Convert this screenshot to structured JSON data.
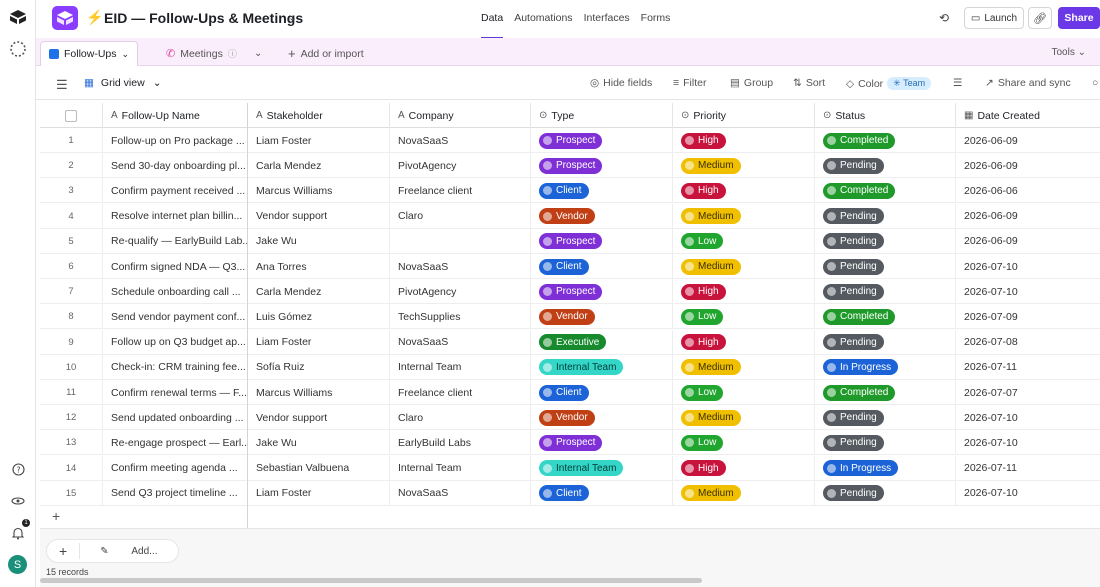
{
  "header": {
    "base_title": "EID — Follow-Ups & Meetings",
    "nav": [
      "Data",
      "Automations",
      "Interfaces",
      "Forms"
    ],
    "launch": "Launch",
    "share": "Share"
  },
  "tabs": {
    "items": [
      {
        "label": "Follow-Ups",
        "color": "#1d72e8"
      },
      {
        "label": "Meetings",
        "color": "#d84a9b"
      }
    ],
    "add_import": "Add or import",
    "tools": "Tools"
  },
  "viewbar": {
    "view_name": "Grid view",
    "hide_fields": "Hide fields",
    "filter": "Filter",
    "group": "Group",
    "sort": "Sort",
    "color": "Color",
    "team": "Team",
    "share_sync": "Share and sync"
  },
  "columns": [
    "Follow-Up Name",
    "Stakeholder",
    "Company",
    "Type",
    "Priority",
    "Status",
    "Date Created"
  ],
  "colors": {
    "Prospect": "#7e2fd6",
    "Client": "#1b63d6",
    "Vendor": "#c13f14",
    "Executive": "#168a2c",
    "Internal Team": "#34d6c8",
    "High": "#c8133d",
    "Medium": "#f0c000",
    "Low": "#20a62e",
    "Completed": "#1f9a2a",
    "Pending": "#555a60",
    "In Progress": "#1b63d6"
  },
  "rows": [
    {
      "n": "1",
      "name": "Follow-up on Pro package ...",
      "stakeholder": "Liam Foster",
      "company": "NovaSaaS",
      "type": "Prospect",
      "priority": "High",
      "status": "Completed",
      "date": "2026-06-09"
    },
    {
      "n": "2",
      "name": "Send 30-day onboarding pl...",
      "stakeholder": "Carla Mendez",
      "company": "PivotAgency",
      "type": "Prospect",
      "priority": "Medium",
      "status": "Pending",
      "date": "2026-06-09"
    },
    {
      "n": "3",
      "name": "Confirm payment received ...",
      "stakeholder": "Marcus Williams",
      "company": "Freelance client",
      "type": "Client",
      "priority": "High",
      "status": "Completed",
      "date": "2026-06-06"
    },
    {
      "n": "4",
      "name": "Resolve internet plan billin...",
      "stakeholder": "Vendor support",
      "company": "Claro",
      "type": "Vendor",
      "priority": "Medium",
      "status": "Pending",
      "date": "2026-06-09"
    },
    {
      "n": "5",
      "name": "Re-qualify — EarlyBuild Lab...",
      "stakeholder": "Jake Wu",
      "company": "",
      "type": "Prospect",
      "priority": "Low",
      "status": "Pending",
      "date": "2026-06-09"
    },
    {
      "n": "6",
      "name": "Confirm signed NDA — Q3...",
      "stakeholder": "Ana Torres",
      "company": "NovaSaaS",
      "type": "Client",
      "priority": "Medium",
      "status": "Pending",
      "date": "2026-07-10"
    },
    {
      "n": "7",
      "name": "Schedule onboarding call ...",
      "stakeholder": "Carla Mendez",
      "company": "PivotAgency",
      "type": "Prospect",
      "priority": "High",
      "status": "Pending",
      "date": "2026-07-10"
    },
    {
      "n": "8",
      "name": "Send vendor payment conf...",
      "stakeholder": "Luis Gómez",
      "company": "TechSupplies",
      "type": "Vendor",
      "priority": "Low",
      "status": "Completed",
      "date": "2026-07-09"
    },
    {
      "n": "9",
      "name": "Follow up on Q3 budget ap...",
      "stakeholder": "Liam Foster",
      "company": "NovaSaaS",
      "type": "Executive",
      "priority": "High",
      "status": "Pending",
      "date": "2026-07-08"
    },
    {
      "n": "10",
      "name": "Check-in: CRM training fee...",
      "stakeholder": "Sofía Ruiz",
      "company": "Internal Team",
      "type": "Internal Team",
      "priority": "Medium",
      "status": "In Progress",
      "date": "2026-07-11"
    },
    {
      "n": "11",
      "name": "Confirm renewal terms — F...",
      "stakeholder": "Marcus Williams",
      "company": "Freelance client",
      "type": "Client",
      "priority": "Low",
      "status": "Completed",
      "date": "2026-07-07"
    },
    {
      "n": "12",
      "name": "Send updated onboarding ...",
      "stakeholder": "Vendor support",
      "company": "Claro",
      "type": "Vendor",
      "priority": "Medium",
      "status": "Pending",
      "date": "2026-07-10"
    },
    {
      "n": "13",
      "name": "Re-engage prospect — Earl...",
      "stakeholder": "Jake Wu",
      "company": "EarlyBuild Labs",
      "type": "Prospect",
      "priority": "Low",
      "status": "Pending",
      "date": "2026-07-10"
    },
    {
      "n": "14",
      "name": "Confirm meeting agenda ...",
      "stakeholder": "Sebastian Valbuena",
      "company": "Internal Team",
      "type": "Internal Team",
      "priority": "High",
      "status": "In Progress",
      "date": "2026-07-11"
    },
    {
      "n": "15",
      "name": "Send Q3 project timeline ...",
      "stakeholder": "Liam Foster",
      "company": "NovaSaaS",
      "type": "Client",
      "priority": "Medium",
      "status": "Pending",
      "date": "2026-07-10"
    }
  ],
  "footer": {
    "add": "Add...",
    "records": "15 records"
  },
  "rail": {
    "avatar": "S",
    "notifications": "1"
  }
}
